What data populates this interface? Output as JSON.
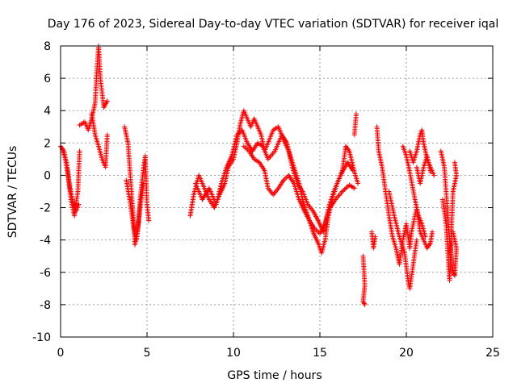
{
  "chart_data": {
    "type": "scatter",
    "title": "Day 176 of 2023, Sidereal Day-to-day VTEC variation (SDTVAR) for receiver iqal",
    "xlabel": "GPS time / hours",
    "ylabel": "SDTVAR / TECUs",
    "xlim": [
      0,
      25
    ],
    "ylim": [
      -10,
      8
    ],
    "xticks": [
      0,
      5,
      10,
      15,
      20,
      25
    ],
    "yticks": [
      -10,
      -8,
      -6,
      -4,
      -2,
      0,
      2,
      4,
      6,
      8
    ],
    "grid": true,
    "marker": "+",
    "color": "#ff0000",
    "series": [
      {
        "name": "SDTVAR",
        "segments": [
          [
            [
              0.0,
              1.8
            ],
            [
              0.2,
              1.5
            ],
            [
              0.4,
              0.2
            ],
            [
              0.6,
              -1.5
            ],
            [
              0.8,
              -2.5
            ],
            [
              1.0,
              -1.0
            ],
            [
              1.1,
              1.5
            ]
          ],
          [
            [
              0.1,
              1.6
            ],
            [
              0.35,
              0.8
            ],
            [
              0.55,
              -0.8
            ],
            [
              0.75,
              -1.8
            ],
            [
              0.9,
              -2.2
            ],
            [
              1.05,
              -1.8
            ]
          ],
          [
            [
              1.1,
              3.1
            ],
            [
              1.4,
              3.3
            ],
            [
              1.6,
              2.8
            ],
            [
              1.8,
              3.5
            ],
            [
              2.0,
              4.5
            ],
            [
              2.1,
              6.5
            ],
            [
              2.2,
              8.0
            ],
            [
              2.3,
              6.0
            ],
            [
              2.5,
              4.2
            ],
            [
              2.7,
              4.6
            ]
          ],
          [
            [
              1.8,
              3.8
            ],
            [
              2.0,
              2.5
            ],
            [
              2.2,
              1.8
            ],
            [
              2.4,
              1.0
            ],
            [
              2.6,
              0.5
            ],
            [
              2.7,
              2.5
            ]
          ],
          [
            [
              3.7,
              3.0
            ],
            [
              3.9,
              2.0
            ],
            [
              4.0,
              0.5
            ],
            [
              4.1,
              -1.0
            ],
            [
              4.2,
              -2.5
            ],
            [
              4.3,
              -4.3
            ],
            [
              4.5,
              -3.0
            ],
            [
              4.6,
              -1.5
            ],
            [
              4.8,
              0.5
            ],
            [
              4.9,
              1.2
            ],
            [
              5.0,
              -1.8
            ],
            [
              5.1,
              -2.8
            ]
          ],
          [
            [
              3.8,
              -0.3
            ],
            [
              4.0,
              -1.5
            ],
            [
              4.2,
              -3.0
            ],
            [
              4.4,
              -4.0
            ],
            [
              4.6,
              -2.0
            ],
            [
              4.8,
              -0.5
            ]
          ],
          [
            [
              7.5,
              -2.5
            ],
            [
              7.7,
              -1.2
            ],
            [
              8.0,
              0.0
            ],
            [
              8.2,
              -0.5
            ],
            [
              8.4,
              -1.0
            ],
            [
              8.6,
              -1.5
            ],
            [
              8.9,
              -2.0
            ],
            [
              9.2,
              -1.2
            ],
            [
              9.5,
              -0.5
            ],
            [
              9.7,
              0.5
            ],
            [
              10.0,
              1.0
            ],
            [
              10.2,
              2.0
            ],
            [
              10.4,
              3.2
            ],
            [
              10.6,
              4.0
            ],
            [
              10.8,
              3.5
            ],
            [
              11.0,
              3.0
            ],
            [
              11.2,
              3.5
            ],
            [
              11.4,
              3.0
            ],
            [
              11.6,
              2.5
            ],
            [
              11.8,
              1.5
            ],
            [
              12.0,
              2.0
            ],
            [
              12.3,
              2.8
            ],
            [
              12.6,
              3.0
            ],
            [
              12.9,
              2.2
            ],
            [
              13.2,
              1.5
            ],
            [
              13.5,
              0.5
            ],
            [
              13.8,
              -0.5
            ],
            [
              14.0,
              -1.5
            ],
            [
              14.3,
              -2.5
            ],
            [
              14.6,
              -3.5
            ],
            [
              14.9,
              -4.2
            ],
            [
              15.1,
              -4.8
            ],
            [
              15.3,
              -4.0
            ],
            [
              15.5,
              -2.5
            ],
            [
              15.7,
              -1.5
            ],
            [
              16.0,
              -0.5
            ],
            [
              16.3,
              0.3
            ],
            [
              16.5,
              1.8
            ],
            [
              16.7,
              1.5
            ],
            [
              17.0,
              0.2
            ],
            [
              17.2,
              -0.5
            ]
          ],
          [
            [
              7.8,
              -0.5
            ],
            [
              8.2,
              -1.5
            ],
            [
              8.6,
              -0.8
            ],
            [
              9.0,
              -1.8
            ],
            [
              9.3,
              -0.5
            ],
            [
              9.6,
              0.5
            ],
            [
              9.9,
              1.2
            ],
            [
              10.2,
              2.5
            ],
            [
              10.5,
              2.8
            ],
            [
              10.8,
              2.0
            ],
            [
              11.1,
              1.5
            ],
            [
              11.4,
              2.0
            ],
            [
              11.7,
              1.8
            ],
            [
              12.0,
              1.0
            ],
            [
              12.4,
              1.5
            ],
            [
              12.8,
              2.5
            ],
            [
              13.1,
              2.0
            ],
            [
              13.4,
              0.5
            ],
            [
              13.7,
              -0.5
            ],
            [
              14.0,
              -1.0
            ],
            [
              14.3,
              -1.8
            ],
            [
              14.6,
              -2.2
            ],
            [
              14.9,
              -2.8
            ],
            [
              15.2,
              -3.5
            ],
            [
              15.5,
              -2.0
            ],
            [
              15.8,
              -1.0
            ],
            [
              16.2,
              0.0
            ],
            [
              16.6,
              0.8
            ],
            [
              16.9,
              0.3
            ]
          ],
          [
            [
              10.6,
              1.8
            ],
            [
              10.9,
              1.5
            ],
            [
              11.2,
              1.0
            ],
            [
              11.5,
              0.8
            ],
            [
              11.8,
              0.3
            ],
            [
              12.0,
              -0.8
            ],
            [
              12.3,
              -1.2
            ],
            [
              12.6,
              -0.8
            ],
            [
              12.9,
              -0.3
            ],
            [
              13.2,
              0.0
            ],
            [
              13.5,
              -0.5
            ],
            [
              13.8,
              -1.5
            ],
            [
              14.1,
              -2.2
            ],
            [
              14.4,
              -2.8
            ],
            [
              14.7,
              -3.3
            ],
            [
              15.0,
              -3.6
            ],
            [
              15.3,
              -3.0
            ],
            [
              15.6,
              -2.0
            ],
            [
              15.9,
              -1.5
            ],
            [
              16.3,
              -1.0
            ],
            [
              16.7,
              -0.6
            ],
            [
              17.0,
              -0.8
            ]
          ],
          [
            [
              17.1,
              3.8
            ],
            [
              17.0,
              2.5
            ]
          ],
          [
            [
              17.5,
              -5.0
            ],
            [
              17.6,
              -6.8
            ],
            [
              17.5,
              -7.8
            ],
            [
              17.6,
              -8.0
            ]
          ],
          [
            [
              18.0,
              -3.5
            ],
            [
              18.1,
              -4.5
            ],
            [
              18.2,
              -3.8
            ]
          ],
          [
            [
              18.3,
              3.0
            ],
            [
              18.4,
              1.5
            ],
            [
              18.6,
              0.5
            ],
            [
              18.8,
              -1.0
            ],
            [
              19.0,
              -2.5
            ],
            [
              19.2,
              -3.8
            ],
            [
              19.4,
              -4.5
            ],
            [
              19.6,
              -5.5
            ],
            [
              19.8,
              -4.0
            ],
            [
              20.0,
              -3.0
            ],
            [
              20.2,
              -4.5
            ],
            [
              20.3,
              -3.5
            ],
            [
              20.6,
              -2.0
            ],
            [
              20.8,
              -3.5
            ],
            [
              21.0,
              -4.0
            ],
            [
              21.2,
              -4.5
            ],
            [
              21.4,
              -4.2
            ],
            [
              21.5,
              -3.5
            ]
          ],
          [
            [
              19.0,
              -1.0
            ],
            [
              19.3,
              -2.5
            ],
            [
              19.6,
              -3.8
            ],
            [
              19.9,
              -4.8
            ],
            [
              20.1,
              -6.5
            ],
            [
              20.2,
              -7.0
            ],
            [
              20.4,
              -5.5
            ],
            [
              20.6,
              -4.0
            ]
          ],
          [
            [
              19.8,
              1.8
            ],
            [
              20.0,
              1.2
            ],
            [
              20.2,
              0.2
            ],
            [
              20.5,
              -1.5
            ],
            [
              20.7,
              -2.5
            ],
            [
              20.9,
              -3.0
            ],
            [
              21.1,
              -3.8
            ]
          ],
          [
            [
              20.2,
              1.5
            ],
            [
              20.4,
              0.8
            ],
            [
              20.6,
              1.5
            ],
            [
              20.8,
              2.5
            ],
            [
              20.9,
              2.8
            ],
            [
              21.0,
              2.0
            ],
            [
              21.2,
              1.0
            ],
            [
              21.4,
              0.5
            ],
            [
              21.6,
              0.0
            ]
          ],
          [
            [
              20.6,
              0.5
            ],
            [
              20.8,
              -0.5
            ],
            [
              21.0,
              0.5
            ],
            [
              21.2,
              1.2
            ],
            [
              21.4,
              0.2
            ]
          ],
          [
            [
              22.0,
              1.5
            ],
            [
              22.2,
              0.5
            ],
            [
              22.3,
              -1.0
            ],
            [
              22.4,
              -2.5
            ],
            [
              22.5,
              -4.0
            ],
            [
              22.6,
              -5.0
            ],
            [
              22.7,
              -6.0
            ],
            [
              22.8,
              -6.2
            ],
            [
              22.9,
              -4.5
            ],
            [
              22.7,
              -3.5
            ]
          ],
          [
            [
              22.1,
              -1.5
            ],
            [
              22.3,
              -3.0
            ],
            [
              22.5,
              -6.5
            ],
            [
              22.7,
              -1.0
            ],
            [
              22.9,
              0.0
            ],
            [
              22.8,
              0.8
            ]
          ]
        ]
      }
    ]
  }
}
